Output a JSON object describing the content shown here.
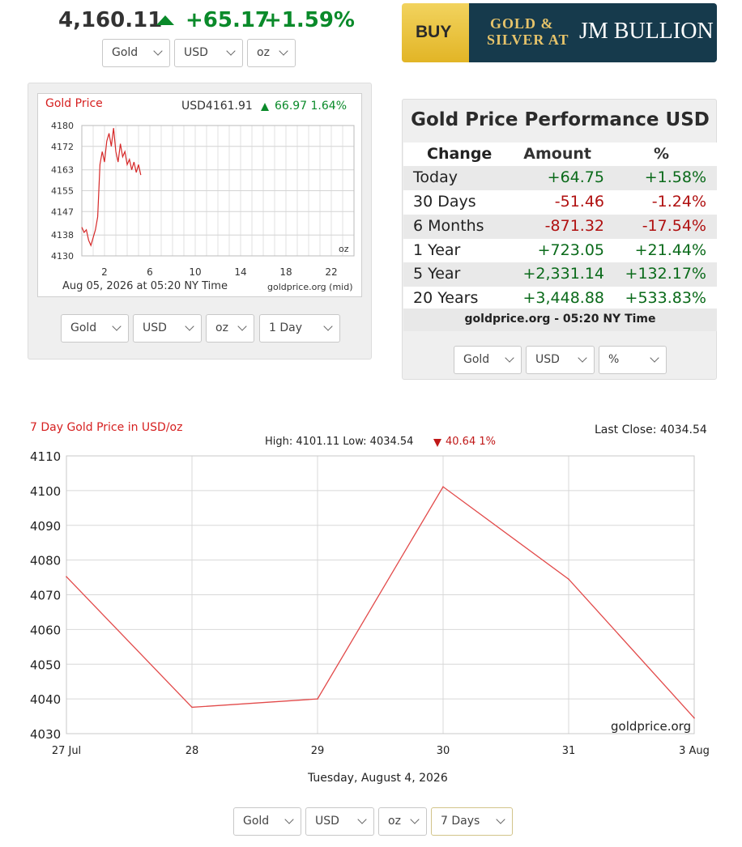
{
  "header": {
    "price": "4,160.11",
    "change": "+65.17",
    "change_pct": "+1.59%",
    "direction_icon": "up-triangle-icon",
    "selects": [
      "Gold",
      "USD",
      "oz"
    ]
  },
  "ad": {
    "buy": "BUY",
    "line1": "GOLD &",
    "line2": "SILVER AT",
    "brand": "JM BULLION"
  },
  "mini_chart": {
    "title": "Gold Price",
    "price_label": "USD4161.91",
    "change_label": "66.97 1.64%",
    "unit": "oz",
    "timestamp": "Aug 05, 2026 at 05:20 NY Time",
    "source": "goldprice.org (mid)",
    "selects": [
      "Gold",
      "USD",
      "oz",
      "1 Day"
    ]
  },
  "performance": {
    "title": "Gold Price Performance USD",
    "headers": [
      "Change",
      "Amount",
      "%"
    ],
    "rows": [
      {
        "period": "Today",
        "amount": "+64.75",
        "pct": "+1.58%"
      },
      {
        "period": "30 Days",
        "amount": "-51.46",
        "pct": "-1.24%"
      },
      {
        "period": "6 Months",
        "amount": "-871.32",
        "pct": "-17.54%"
      },
      {
        "period": "1 Year",
        "amount": "+723.05",
        "pct": "+21.44%"
      },
      {
        "period": "5 Year",
        "amount": "+2,331.14",
        "pct": "+132.17%"
      },
      {
        "period": "20 Years",
        "amount": "+3,448.88",
        "pct": "+533.83%"
      }
    ],
    "footer": "goldprice.org - 05:20 NY Time",
    "selects": [
      "Gold",
      "USD",
      "%"
    ]
  },
  "big_chart": {
    "title": "7 Day Gold Price in USD/oz",
    "last_close": "Last Close: 4034.54",
    "stats": "High: 4101.11 Low: 4034.54",
    "stats_change": "40.64 1%",
    "watermark": "goldprice.org",
    "xlabel": "Tuesday, August 4, 2026",
    "selects": [
      "Gold",
      "USD",
      "oz",
      "7 Days"
    ]
  },
  "chart_data": [
    {
      "type": "line",
      "title": "Gold Price",
      "x_ticks": [
        "2",
        "6",
        "10",
        "14",
        "18",
        "22"
      ],
      "y_ticks": [
        "4130",
        "4138",
        "4147",
        "4155",
        "4163",
        "4172",
        "4180"
      ],
      "ylim": [
        4130,
        4180
      ],
      "xlim": [
        0,
        24
      ],
      "grid": true,
      "series": [
        {
          "x": [
            0,
            0.2,
            0.4,
            0.6,
            0.8,
            1.0,
            1.2,
            1.4,
            1.6,
            1.8,
            2.0,
            2.2,
            2.4,
            2.6,
            2.8,
            3.0,
            3.2,
            3.4,
            3.6,
            3.8,
            4.0,
            4.2,
            4.4,
            4.6,
            4.8,
            5.0,
            5.2
          ],
          "y": [
            4141,
            4139,
            4140,
            4136,
            4134,
            4137,
            4140,
            4145,
            4165,
            4170,
            4166,
            4174,
            4177,
            4172,
            4179,
            4170,
            4166,
            4173,
            4168,
            4170,
            4165,
            4167,
            4163,
            4166,
            4162,
            4165,
            4161
          ]
        }
      ]
    },
    {
      "type": "line",
      "title": "7 Day Gold Price in USD/oz",
      "categories": [
        "27 Jul",
        "28",
        "29",
        "30",
        "31",
        "3 Aug"
      ],
      "x_ticks": [
        "27 Jul",
        "28",
        "29",
        "30",
        "31",
        "3 Aug"
      ],
      "y_ticks": [
        "4030",
        "4040",
        "4050",
        "4060",
        "4070",
        "4080",
        "4090",
        "4100",
        "4110"
      ],
      "ylim": [
        4030,
        4110
      ],
      "xlabel": "Tuesday, August 4, 2026",
      "grid": true,
      "series": [
        {
          "values": [
            4075.2,
            4037.6,
            4040.0,
            4101.1,
            4074.5,
            4034.5
          ]
        }
      ]
    }
  ],
  "colors": {
    "up": "#0a8a2a",
    "down": "#c01818",
    "line": "#e24a4a",
    "grid": "#d8d8d8"
  }
}
